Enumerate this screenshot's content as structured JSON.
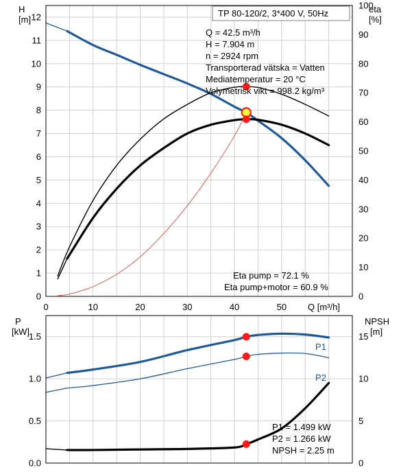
{
  "title": "TP 80-120/2, 3*400 V, 50Hz",
  "upper_info": [
    "Q = 42.5 m³/h",
    "H = 7.904 m",
    "n = 2924 rpm",
    "Transporterad vätska = Vatten",
    "Mediatemperatur = 20 °C",
    "Volymetrisk vikt = 998.2 kg/m³"
  ],
  "eta_info": [
    "Eta pump = 72.1 %",
    "Eta pump+motor = 60.9 %"
  ],
  "lower_info": [
    "P1 = 1.499 kW",
    "P2 = 1.266 kW",
    "NPSH = 2.25 m"
  ],
  "colors": {
    "blue": "#1f5a96",
    "red": "#e8483a",
    "dot": "#ff1a1a",
    "op_fill": "#ffff33"
  },
  "chart_data": [
    {
      "type": "line",
      "panel": "upper",
      "xlabel": "Q [m³/h]",
      "ylabel_left": "H\n[m]",
      "ylabel_right": "eta\n[%]",
      "xlim": [
        0,
        65
      ],
      "ylim_left": [
        0,
        12.5
      ],
      "ylim_right": [
        0,
        100
      ],
      "x_ticks": [
        0,
        10,
        20,
        30,
        40,
        50
      ],
      "y_left_ticks": [
        0,
        1,
        2,
        3,
        4,
        5,
        6,
        7,
        8,
        9,
        10,
        11,
        12
      ],
      "y_right_ticks": [
        0,
        10,
        20,
        30,
        40,
        50,
        60,
        70,
        80,
        90,
        100
      ],
      "grid": true,
      "series": [
        {
          "id": "h_curve_ext",
          "axis": "left",
          "style": "thin-blue",
          "x": [
            0,
            4.5
          ],
          "y": [
            11.75,
            11.4
          ]
        },
        {
          "id": "h_curve",
          "axis": "left",
          "style": "thick-blue",
          "x": [
            4.5,
            10,
            15,
            20,
            25,
            30,
            35,
            40,
            42.5,
            45,
            50,
            55,
            60
          ],
          "y": [
            11.4,
            10.8,
            10.38,
            9.95,
            9.55,
            9.15,
            8.7,
            8.15,
            7.904,
            7.55,
            6.8,
            5.85,
            4.75
          ]
        },
        {
          "id": "eta_pump",
          "axis": "right",
          "style": "thin-black",
          "x": [
            2.5,
            5,
            10,
            15,
            20,
            25,
            30,
            35,
            40,
            42.5,
            45,
            50,
            55,
            60
          ],
          "y": [
            7,
            17,
            33,
            45,
            54,
            61,
            66,
            70,
            71.9,
            72.1,
            71.8,
            69.5,
            66,
            62
          ]
        },
        {
          "id": "eta_pump_motor",
          "axis": "right",
          "style": "thick-black",
          "x": [
            4.5,
            10,
            15,
            20,
            25,
            30,
            35,
            40,
            42.5,
            45,
            50,
            55,
            60
          ],
          "y": [
            13,
            27,
            37,
            45,
            51,
            56,
            59,
            60.6,
            60.9,
            60.7,
            59,
            56,
            52
          ]
        },
        {
          "id": "eta_pump_low",
          "axis": "right",
          "style": "thin-black",
          "x": [
            2.5,
            4.5
          ],
          "y": [
            6,
            13
          ]
        },
        {
          "id": "h_system",
          "axis": "left",
          "style": "thin-red",
          "x": [
            2.5,
            5,
            10,
            15,
            20,
            25,
            30,
            35,
            40,
            42.5
          ],
          "y": [
            0.03,
            0.1,
            0.42,
            0.95,
            1.7,
            2.7,
            3.9,
            5.3,
            6.9,
            7.904
          ]
        }
      ],
      "points": [
        {
          "id": "op-point",
          "axis": "left",
          "x": 42.5,
          "y": 7.904,
          "style": "operating"
        },
        {
          "id": "eta-pump-point",
          "axis": "right",
          "x": 42.5,
          "y": 72.1,
          "style": "dot"
        },
        {
          "id": "eta-motor-point",
          "axis": "right",
          "x": 42.5,
          "y": 60.9,
          "style": "dot"
        }
      ]
    },
    {
      "type": "line",
      "panel": "lower",
      "ylabel_left": "P\n[kW]",
      "ylabel_right": "NPSH\n[m]",
      "xlim": [
        0,
        65
      ],
      "ylim_left": [
        0,
        1.75
      ],
      "ylim_right": [
        0,
        17.5
      ],
      "y_left_ticks": [
        "0.0",
        "0.5",
        "1.0",
        "1.5"
      ],
      "y_right_ticks": [
        0,
        5,
        10,
        15
      ],
      "grid": true,
      "series": [
        {
          "id": "p1_ext",
          "axis": "left",
          "style": "thin-blue",
          "x": [
            0,
            4.5
          ],
          "y": [
            1.01,
            1.07
          ]
        },
        {
          "id": "p1",
          "axis": "left",
          "style": "thick-blue",
          "name": "P1",
          "x": [
            4.5,
            10,
            20,
            30,
            40,
            42.5,
            45,
            50,
            55,
            60
          ],
          "y": [
            1.07,
            1.11,
            1.2,
            1.34,
            1.46,
            1.499,
            1.52,
            1.535,
            1.525,
            1.49
          ]
        },
        {
          "id": "p2_ext",
          "axis": "left",
          "style": "thin-blue",
          "x": [
            0,
            4.5
          ],
          "y": [
            0.84,
            0.89
          ]
        },
        {
          "id": "p2",
          "axis": "left",
          "style": "thin-blue",
          "name": "P2",
          "x": [
            4.5,
            10,
            20,
            30,
            40,
            42.5,
            45,
            50,
            55,
            60
          ],
          "y": [
            0.89,
            0.92,
            1.0,
            1.12,
            1.23,
            1.266,
            1.29,
            1.305,
            1.3,
            1.25
          ]
        },
        {
          "id": "npsh_ext",
          "axis": "right",
          "style": "thin-black",
          "x": [
            0,
            4.5
          ],
          "y": [
            1.7,
            1.55
          ]
        },
        {
          "id": "npsh",
          "axis": "right",
          "style": "thick-black",
          "x": [
            4.5,
            10,
            20,
            30,
            40,
            42.5,
            45,
            50,
            55,
            60
          ],
          "y": [
            1.55,
            1.55,
            1.62,
            1.68,
            1.85,
            2.25,
            2.8,
            4.1,
            6.5,
            9.5
          ]
        }
      ],
      "points": [
        {
          "id": "p1-point",
          "axis": "left",
          "x": 42.5,
          "y": 1.499,
          "style": "dot"
        },
        {
          "id": "p2-point",
          "axis": "left",
          "x": 42.5,
          "y": 1.266,
          "style": "dot"
        },
        {
          "id": "npsh-point",
          "axis": "right",
          "x": 42.5,
          "y": 2.25,
          "style": "dot"
        }
      ]
    }
  ]
}
